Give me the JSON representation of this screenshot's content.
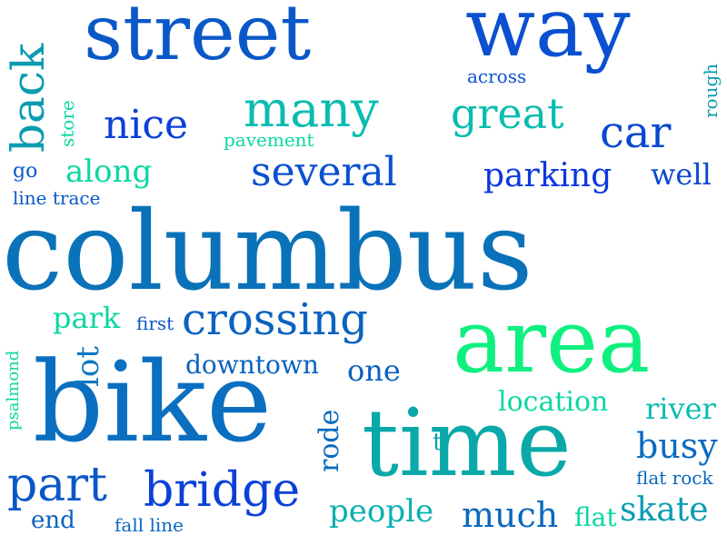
{
  "words": [
    {
      "text": "columbus",
      "color": "#0a72b8"
    },
    {
      "text": "bike",
      "color": "#0a6fc0"
    },
    {
      "text": "area",
      "color": "#0ff080"
    },
    {
      "text": "time",
      "color": "#0aa8a8"
    },
    {
      "text": "street",
      "color": "#0a58c8"
    },
    {
      "text": "way",
      "color": "#0a50d0"
    },
    {
      "text": "crossing",
      "color": "#0a62c0"
    },
    {
      "text": "back",
      "color": "#0a9cb0"
    },
    {
      "text": "many",
      "color": "#0abcb0"
    },
    {
      "text": "great",
      "color": "#0abcb0"
    },
    {
      "text": "car",
      "color": "#0a48d0"
    },
    {
      "text": "nice",
      "color": "#0a40d8"
    },
    {
      "text": "several",
      "color": "#0a50d0"
    },
    {
      "text": "parking",
      "color": "#0a38e0"
    },
    {
      "text": "along",
      "color": "#0ad8a0"
    },
    {
      "text": "well",
      "color": "#0a48d0"
    },
    {
      "text": "part",
      "color": "#0a58c8"
    },
    {
      "text": "bridge",
      "color": "#0a40d8"
    },
    {
      "text": "park",
      "color": "#0ad8a0"
    },
    {
      "text": "lot",
      "color": "#0a78c0"
    },
    {
      "text": "downtown",
      "color": "#0a62c0"
    },
    {
      "text": "one",
      "color": "#0a62c0"
    },
    {
      "text": "location",
      "color": "#0ad8a0"
    },
    {
      "text": "river",
      "color": "#0abcb0"
    },
    {
      "text": "busy",
      "color": "#0a6ac0"
    },
    {
      "text": "rode",
      "color": "#0a6ac0"
    },
    {
      "text": "people",
      "color": "#0ab0b0"
    },
    {
      "text": "much",
      "color": "#0a68c0"
    },
    {
      "text": "flat",
      "color": "#0ad8a0"
    },
    {
      "text": "skate",
      "color": "#0a9cb0"
    },
    {
      "text": "end",
      "color": "#0a62c0"
    },
    {
      "text": "across",
      "color": "#0a50d0"
    },
    {
      "text": "rough",
      "color": "#0a9cb0"
    },
    {
      "text": "store",
      "color": "#0ad8a0"
    },
    {
      "text": "pavement",
      "color": "#0ad8a0"
    },
    {
      "text": "go",
      "color": "#0a58c8"
    },
    {
      "text": "line trace",
      "color": "#0a58c8"
    },
    {
      "text": "first",
      "color": "#0a58c8"
    },
    {
      "text": "psalmond",
      "color": "#0ad8a0"
    },
    {
      "text": "t",
      "color": "#0a9cb0"
    },
    {
      "text": "flat rock",
      "color": "#0a68c0"
    },
    {
      "text": "fall line",
      "color": "#0a68c0"
    }
  ]
}
